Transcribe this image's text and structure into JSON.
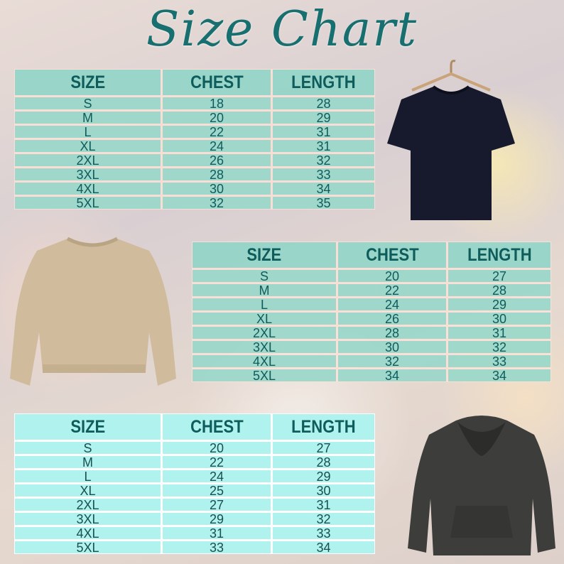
{
  "title": "Size Chart",
  "colors": {
    "title": "#17706f",
    "header_text": "#0e5c5c",
    "table_fill": "#7dd4c6",
    "table3_fill": "#b0f3ee"
  },
  "garments": [
    "t-shirt-image",
    "sweatshirt-image",
    "hoodie-image"
  ],
  "tables": [
    {
      "headers": [
        "SIZE",
        "CHEST",
        "LENGTH"
      ],
      "rows": [
        [
          "S",
          "18",
          "28"
        ],
        [
          "M",
          "20",
          "29"
        ],
        [
          "L",
          "22",
          "31"
        ],
        [
          "XL",
          "24",
          "31"
        ],
        [
          "2XL",
          "26",
          "32"
        ],
        [
          "3XL",
          "28",
          "33"
        ],
        [
          "4XL",
          "30",
          "34"
        ],
        [
          "5XL",
          "32",
          "35"
        ]
      ]
    },
    {
      "headers": [
        "SIZE",
        "CHEST",
        "LENGTH"
      ],
      "rows": [
        [
          "S",
          "20",
          "27"
        ],
        [
          "M",
          "22",
          "28"
        ],
        [
          "L",
          "24",
          "29"
        ],
        [
          "XL",
          "26",
          "30"
        ],
        [
          "2XL",
          "28",
          "31"
        ],
        [
          "3XL",
          "30",
          "32"
        ],
        [
          "4XL",
          "32",
          "33"
        ],
        [
          "5XL",
          "34",
          "34"
        ]
      ]
    },
    {
      "headers": [
        "SIZE",
        "CHEST",
        "LENGTH"
      ],
      "rows": [
        [
          "S",
          "20",
          "27"
        ],
        [
          "M",
          "22",
          "28"
        ],
        [
          "L",
          "24",
          "29"
        ],
        [
          "XL",
          "25",
          "30"
        ],
        [
          "2XL",
          "27",
          "31"
        ],
        [
          "3XL",
          "29",
          "32"
        ],
        [
          "4XL",
          "31",
          "33"
        ],
        [
          "5XL",
          "33",
          "34"
        ]
      ]
    }
  ]
}
